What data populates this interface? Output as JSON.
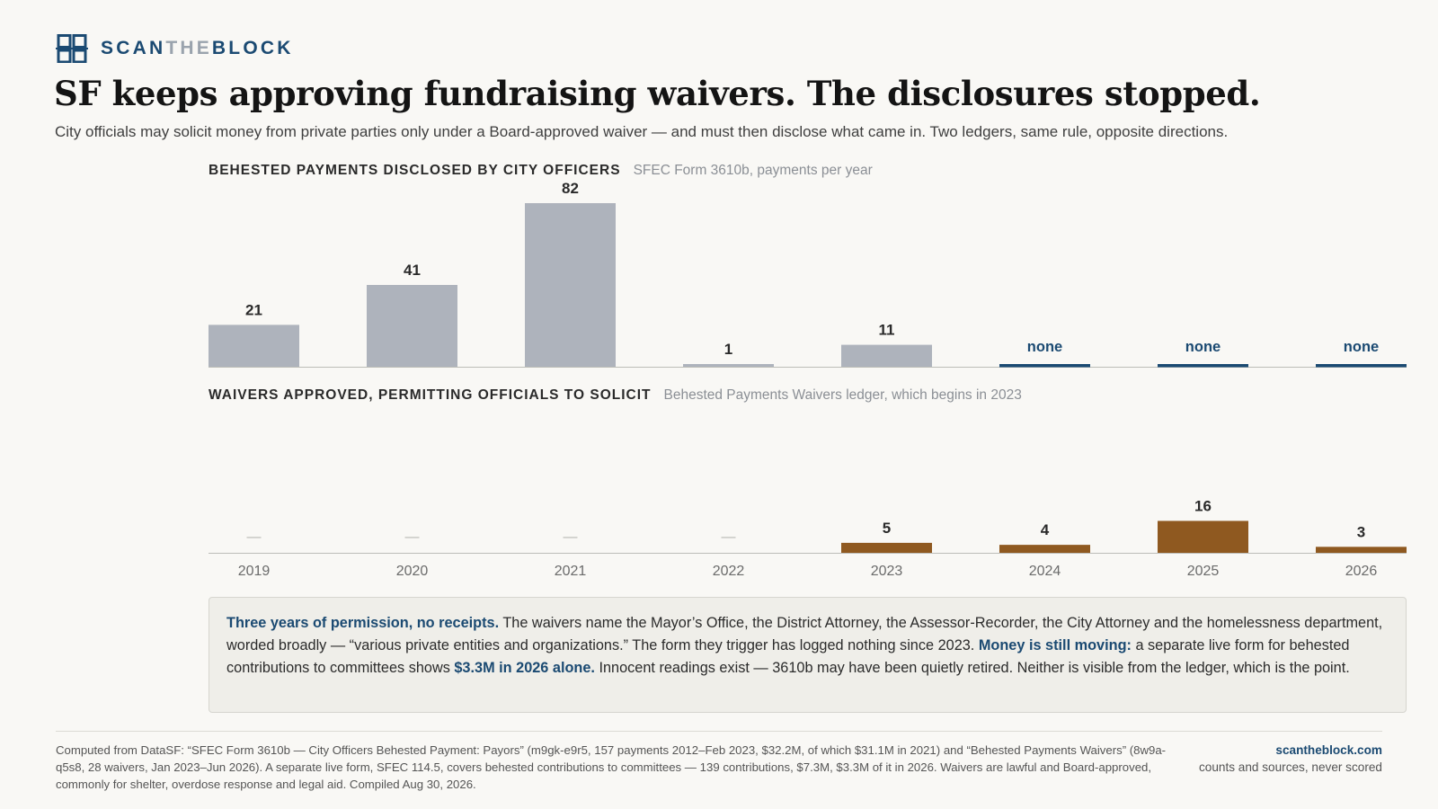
{
  "brand": {
    "part1": "SCAN",
    "part2": "THE",
    "part3": "BLOCK",
    "icon": "grid-logo-icon",
    "color": "#1b4a72"
  },
  "headline": "SF keeps approving fundraising waivers. The disclosures stopped.",
  "subhead": "City officials may solicit money from private parties only under a Board-approved waiver — and must then disclose what came in. Two ledgers, same rule, opposite directions.",
  "chart_data": [
    {
      "type": "bar",
      "title": "BEHESTED PAYMENTS DISCLOSED BY CITY OFFICERS",
      "subtitle": "SFEC Form 3610b, payments per year",
      "categories": [
        "2019",
        "2020",
        "2021",
        "2022",
        "2023",
        "2024",
        "2025",
        "2026"
      ],
      "values": [
        21,
        41,
        82,
        1,
        11,
        null,
        null,
        null
      ],
      "labels": [
        "21",
        "41",
        "82",
        "1",
        "11",
        "none",
        "none",
        "none"
      ],
      "color": "#aeb3bc",
      "none_color": "#1b4a72"
    },
    {
      "type": "bar",
      "title": "WAIVERS APPROVED, PERMITTING OFFICIALS TO SOLICIT",
      "subtitle": "Behested Payments Waivers ledger, which begins in 2023",
      "categories": [
        "2019",
        "2020",
        "2021",
        "2022",
        "2023",
        "2024",
        "2025",
        "2026"
      ],
      "values": [
        null,
        null,
        null,
        null,
        5,
        4,
        16,
        3
      ],
      "labels": [
        "—",
        "—",
        "—",
        "—",
        "5",
        "4",
        "16",
        "3"
      ],
      "color": "#8f5920"
    }
  ],
  "callout": {
    "lead": "Three years of permission, no receipts.",
    "text1": " The waivers name the Mayor’s Office, the District Attorney, the Assessor-Recorder, the City Attorney and the homelessness department, worded broadly — “various private entities and organizations.” The form they trigger has logged nothing since 2023. ",
    "hl2": "Money is still moving:",
    "text2": " a separate live form for behested contributions to committees shows ",
    "hl3": "$3.3M in 2026 alone.",
    "text3": " Innocent readings exist — 3610b may have been quietly retired. Neither is visible from the ledger, which is the point."
  },
  "footer": {
    "source": "Computed from DataSF: “SFEC Form 3610b — City Officers Behested Payment: Payors” (m9gk-e9r5, 157 payments 2012–Feb 2023, $32.2M, of which $31.1M in 2021) and “Behested Payments Waivers” (8w9a-q5s8, 28 waivers, Jan 2023–Jun 2026). A separate live form, SFEC 114.5, covers behested contributions to committees — 139 contributions, $7.3M, $3.3M of it in 2026. Waivers are lawful and Board-approved, commonly for shelter, overdose response and legal aid. Compiled Aug 30, 2026.",
    "site": "scantheblock.com",
    "tagline": "counts and sources, never scored"
  }
}
